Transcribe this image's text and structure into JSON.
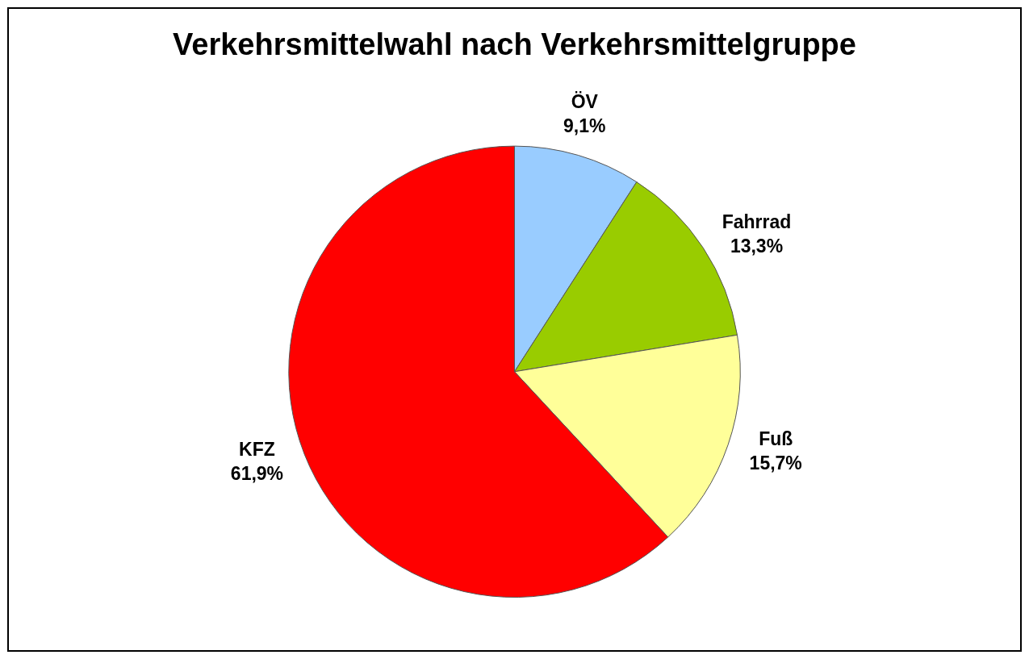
{
  "chart_data": {
    "type": "pie",
    "title": "Verkehrsmittelwahl nach Verkehrsmittelgruppe",
    "categories": [
      "ÖV",
      "Fahrrad",
      "Fuß",
      "KFZ"
    ],
    "values": [
      9.1,
      13.3,
      15.7,
      61.9
    ],
    "colors": [
      "#99ccff",
      "#99cc00",
      "#ffff99",
      "#ff0000"
    ],
    "value_labels": [
      "9,1%",
      "13,3%",
      "15,7%",
      "61,9%"
    ]
  }
}
